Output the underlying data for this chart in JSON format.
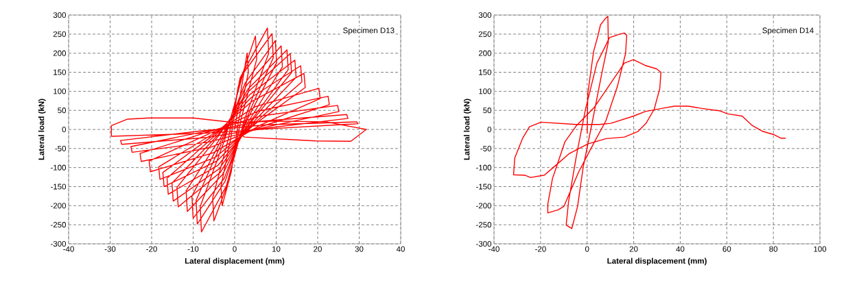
{
  "chart_data": [
    {
      "type": "line",
      "xlabel": "Lateral displacement (mm)",
      "ylabel": "Lateral load (kN)",
      "annotations": [
        "Specimen D13"
      ],
      "xlim": [
        -40,
        40
      ],
      "ylim": [
        -300,
        300
      ],
      "xticks": [
        -40,
        -30,
        -20,
        -10,
        0,
        10,
        20,
        30,
        40
      ],
      "yticks": [
        -300,
        -250,
        -200,
        -150,
        -100,
        -50,
        0,
        50,
        100,
        150,
        200,
        250,
        300
      ],
      "grid": true,
      "series": [
        {
          "color": "#ff0000",
          "x": [
            0,
            3,
            3.3,
            0.9,
            -0.8,
            -3,
            -3.3,
            -0.9,
            0.8,
            5,
            5.3,
            1.5,
            -1.3,
            -5,
            -5.3,
            -1.5,
            1.3,
            7.9,
            8.2,
            2.4,
            -2,
            -8,
            -8.3,
            -2.4,
            2,
            9,
            9.3,
            2.7,
            -2.3,
            -9,
            -9.3,
            -2.7,
            2.5,
            9.8,
            10.1,
            2.9,
            -2.5,
            -10,
            -10.3,
            -3,
            2.8,
            11.2,
            11.5,
            3.4,
            -2.9,
            -11.4,
            -11.7,
            -3.4,
            3.2,
            12.6,
            12.9,
            3.8,
            -3.4,
            -13.6,
            -13.9,
            -4.1,
            3.4,
            13.4,
            13.7,
            4,
            -3.7,
            -14.8,
            -15.1,
            -4.4,
            3.6,
            14.5,
            14.8,
            4.4,
            -4,
            -16,
            -16.3,
            -4.8,
            4,
            15.9,
            16.2,
            4.8,
            -4.3,
            -17,
            -17.3,
            -5.1,
            4.2,
            16.7,
            17,
            5,
            -4.5,
            -18,
            -18.3,
            -5.4,
            5,
            20.3,
            20.6,
            6.1,
            -5.1,
            -20.3,
            -20.6,
            -6.1,
            5.6,
            22.5,
            22.8,
            6.8,
            -5.6,
            -22.5,
            -22.8,
            -6.8,
            6.2,
            24.8,
            25.1,
            7.4,
            -6.2,
            -24.7,
            -25,
            -7.4,
            6.8,
            27,
            27.3,
            8.1,
            -6.8,
            -27.2,
            -27.5,
            -8.2,
            7.4,
            29.4,
            29.7,
            8.8,
            -7.4,
            -29.7,
            -29.7,
            -25.8,
            -20.6,
            -10,
            0,
            10,
            22,
            31.7,
            28,
            19.5,
            2.4,
            0
          ],
          "values": [
            0,
            200,
            150,
            20,
            -110,
            -200,
            -150,
            -20,
            110,
            245,
            184,
            25,
            -132,
            -240,
            -180,
            -24,
            135,
            266,
            200,
            27,
            -148,
            -269,
            -202,
            -27,
            146,
            251,
            188,
            25,
            -136,
            -248,
            -186,
            -25,
            121,
            233,
            175,
            23,
            -128,
            -233,
            -175,
            -23,
            115,
            219,
            164,
            22,
            -118,
            -215,
            -161,
            -22,
            106,
            209,
            157,
            21,
            -112,
            -203,
            -152,
            -20,
            100,
            199,
            149,
            20,
            -103,
            -188,
            -141,
            -19,
            91,
            182,
            137,
            18,
            -94,
            -170,
            -128,
            -17,
            84,
            167,
            125,
            17,
            -83,
            -150,
            -113,
            -15,
            74,
            147,
            110,
            15,
            -72,
            -131,
            -98,
            -13,
            60,
            108,
            81,
            11,
            -61,
            -111,
            -83,
            -11,
            48,
            87,
            65,
            9,
            -46,
            -84,
            -63,
            -8,
            35,
            63,
            47,
            6,
            -33,
            -60,
            -45,
            -6,
            22,
            39,
            29,
            4,
            -21,
            -39,
            -29,
            -4,
            12,
            20,
            15,
            2,
            -10,
            -18,
            10,
            27,
            30,
            30,
            18,
            22,
            20,
            0,
            -31,
            -30,
            -20,
            -5
          ]
        }
      ]
    },
    {
      "type": "line",
      "xlabel": "Lateral displacement (mm)",
      "ylabel": "Lateral load (kN)",
      "annotations": [
        "Specimen D14"
      ],
      "xlim": [
        -40,
        100
      ],
      "ylim": [
        -300,
        300
      ],
      "xticks": [
        -40,
        -20,
        0,
        20,
        40,
        60,
        80,
        100
      ],
      "yticks": [
        -300,
        -250,
        -200,
        -150,
        -100,
        -50,
        0,
        50,
        100,
        150,
        200,
        250,
        300
      ],
      "grid": true,
      "series": [
        {
          "color": "#ff0000",
          "x": [
            0,
            0.3,
            2.8,
            4.7,
            5.7,
            7.7,
            8.9,
            9.1,
            6.2,
            2.3,
            -1.7,
            -4.1,
            -6.6,
            -9,
            -8,
            -4.6,
            -0.7,
            4.2,
            8.2,
            9.6,
            14,
            16,
            17,
            16.5,
            13,
            8,
            3.2,
            -3.6,
            -10,
            -12.5,
            -16.9,
            -16.9,
            -14.9,
            -9.5,
            -4.6,
            3.2,
            16,
            19.9,
            24.9,
            29.8,
            31.7,
            31.2,
            28.8,
            25.3,
            21.9,
            16,
            8.2,
            0.3,
            -7.6,
            -14.4,
            -18.4,
            -24.3,
            -26.7,
            -31.6,
            -31.1,
            -27.7,
            -24.8,
            -19.8,
            -4.6,
            5.2,
            10.1,
            19.9,
            24.9,
            32.7,
            37.6,
            43.5,
            49.4,
            56.8,
            60.3,
            66.6,
            71,
            75.4,
            80.4,
            83.3,
            85.3
          ],
          "values": [
            -11,
            95,
            205,
            247,
            274,
            290,
            297,
            229,
            144,
            22,
            -99,
            -202,
            -260,
            -251,
            -190,
            -69,
            53,
            174,
            223,
            241,
            250,
            253,
            247,
            199,
            113,
            22,
            -32,
            -111,
            -202,
            -211,
            -219,
            -196,
            -129,
            -32,
            10,
            59,
            174,
            183,
            168,
            159,
            150,
            107,
            53,
            16,
            -5,
            -20,
            -24,
            -38,
            -63,
            -99,
            -120,
            -126,
            -120,
            -119,
            -75,
            -23,
            7,
            19,
            13,
            13,
            16,
            35,
            47,
            56,
            61,
            61,
            55,
            49,
            41,
            35,
            10,
            -5,
            -14,
            -23,
            -23
          ]
        }
      ]
    }
  ]
}
